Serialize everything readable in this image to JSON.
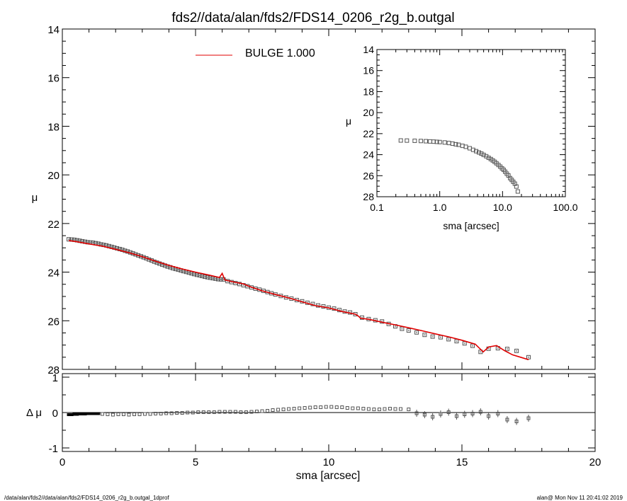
{
  "title": "fds2//data/alan/fds2/FDS14_0206_r2g_b.outgal",
  "footer_left": "/data/alan/fds2//data/alan/fds2/FDS14_0206_r2g_b.outgal_1dprof",
  "footer_right": "alan@  Mon Nov 11 20:41:02 2019",
  "legend": {
    "label": "BULGE  1.000",
    "color": "#e00000"
  },
  "chart_data": [
    {
      "type": "scatter",
      "panel": "main",
      "xlabel": "sma [arcsec]",
      "ylabel": "μ",
      "xlim": [
        0,
        20
      ],
      "ylim": [
        28,
        14
      ],
      "x_ticks": [
        "0",
        "5",
        "10",
        "15",
        "20"
      ],
      "y_ticks": [
        "14",
        "16",
        "18",
        "20",
        "22",
        "24",
        "26",
        "28"
      ],
      "series": [
        {
          "name": "data",
          "x": [
            0.24,
            0.35,
            0.45,
            0.55,
            0.65,
            0.75,
            0.85,
            0.95,
            1.05,
            1.15,
            1.25,
            1.35,
            1.45,
            1.55,
            1.65,
            1.75,
            1.85,
            1.95,
            2.05,
            2.15,
            2.25,
            2.35,
            2.45,
            2.55,
            2.65,
            2.75,
            2.85,
            2.95,
            3.05,
            3.15,
            3.25,
            3.35,
            3.45,
            3.55,
            3.65,
            3.75,
            3.85,
            3.95,
            4.05,
            4.15,
            4.25,
            4.35,
            4.45,
            4.55,
            4.65,
            4.75,
            4.85,
            4.95,
            5.05,
            5.15,
            5.25,
            5.35,
            5.45,
            5.55,
            5.65,
            5.75,
            5.85,
            5.95,
            6.05,
            6.2,
            6.35,
            6.5,
            6.65,
            6.8,
            6.95,
            7.1,
            7.25,
            7.4,
            7.55,
            7.7,
            7.85,
            8.0,
            8.2,
            8.4,
            8.6,
            8.8,
            9.0,
            9.2,
            9.4,
            9.6,
            9.8,
            10.0,
            10.2,
            10.4,
            10.6,
            10.8,
            11.0,
            11.25,
            11.5,
            11.75,
            12.0,
            12.25,
            12.5,
            12.75,
            13.0,
            13.3,
            13.6,
            13.9,
            14.2,
            14.5,
            14.8,
            15.1,
            15.4,
            15.7,
            16.0,
            16.35,
            16.7,
            17.05,
            17.5
          ],
          "y": [
            22.65,
            22.66,
            22.67,
            22.69,
            22.71,
            22.73,
            22.75,
            22.77,
            22.78,
            22.79,
            22.81,
            22.83,
            22.86,
            22.88,
            22.9,
            22.93,
            22.96,
            22.99,
            23.02,
            23.05,
            23.08,
            23.12,
            23.15,
            23.19,
            23.23,
            23.27,
            23.31,
            23.35,
            23.39,
            23.43,
            23.48,
            23.52,
            23.57,
            23.61,
            23.65,
            23.69,
            23.73,
            23.77,
            23.8,
            23.84,
            23.87,
            23.9,
            23.93,
            23.96,
            23.99,
            24.02,
            24.05,
            24.08,
            24.11,
            24.13,
            24.16,
            24.19,
            24.21,
            24.23,
            24.25,
            24.27,
            24.29,
            24.3,
            24.3,
            24.37,
            24.41,
            24.45,
            24.49,
            24.54,
            24.58,
            24.63,
            24.68,
            24.72,
            24.77,
            24.82,
            24.87,
            24.92,
            24.98,
            25.04,
            25.09,
            25.15,
            25.2,
            25.26,
            25.31,
            25.37,
            25.41,
            25.46,
            25.5,
            25.56,
            25.62,
            25.66,
            25.73,
            25.87,
            25.93,
            25.98,
            26.03,
            26.13,
            26.23,
            26.33,
            26.4,
            26.48,
            26.58,
            26.65,
            26.68,
            26.76,
            26.84,
            26.93,
            27.03,
            27.28,
            27.15,
            27.13,
            27.16,
            27.24,
            27.5
          ]
        },
        {
          "name": "BULGE  1.000",
          "x": [
            0.24,
            0.5,
            1.0,
            1.5,
            2.0,
            2.5,
            3.0,
            3.5,
            4.0,
            4.5,
            5.0,
            5.5,
            5.9,
            6.0,
            6.1,
            6.5,
            6.8,
            7.0,
            7.5,
            8.0,
            8.5,
            9.0,
            9.5,
            10.0,
            10.5,
            11.0,
            11.1,
            11.2,
            11.5,
            12.0,
            12.5,
            13.0,
            13.5,
            14.0,
            14.5,
            15.0,
            15.5,
            15.8,
            16.0,
            16.3,
            16.6,
            16.9,
            17.2,
            17.5
          ],
          "y": [
            22.7,
            22.74,
            22.84,
            22.93,
            23.06,
            23.2,
            23.36,
            23.55,
            23.72,
            23.87,
            24.0,
            24.12,
            24.22,
            24.05,
            24.32,
            24.42,
            24.48,
            24.58,
            24.77,
            24.92,
            25.06,
            25.22,
            25.38,
            25.47,
            25.62,
            25.73,
            25.8,
            25.9,
            25.94,
            26.06,
            26.17,
            26.29,
            26.41,
            26.54,
            26.66,
            26.8,
            26.96,
            27.28,
            27.08,
            27.02,
            27.23,
            27.4,
            27.5,
            27.6
          ]
        }
      ]
    },
    {
      "type": "scatter",
      "panel": "residuals",
      "xlabel": "sma [arcsec]",
      "ylabel": "Δ μ",
      "xlim": [
        0,
        20
      ],
      "ylim": [
        -1.1,
        1.1
      ],
      "y_ticks": [
        "1",
        "0",
        "-1"
      ],
      "x": [
        0.24,
        0.35,
        0.45,
        0.55,
        0.65,
        0.75,
        0.85,
        0.95,
        1.05,
        1.15,
        1.25,
        1.35,
        1.5,
        1.7,
        1.9,
        2.1,
        2.3,
        2.5,
        2.7,
        2.9,
        3.1,
        3.3,
        3.5,
        3.7,
        3.9,
        4.1,
        4.3,
        4.5,
        4.7,
        4.9,
        5.1,
        5.3,
        5.5,
        5.7,
        5.9,
        6.1,
        6.3,
        6.5,
        6.7,
        6.9,
        7.1,
        7.3,
        7.5,
        7.7,
        7.9,
        8.1,
        8.3,
        8.5,
        8.7,
        8.9,
        9.1,
        9.3,
        9.5,
        9.7,
        9.9,
        10.1,
        10.3,
        10.5,
        10.7,
        10.9,
        11.1,
        11.3,
        11.5,
        11.7,
        11.9,
        12.1,
        12.3,
        12.5,
        12.7,
        13.0,
        13.3,
        13.6,
        13.9,
        14.2,
        14.5,
        14.8,
        15.1,
        15.4,
        15.7,
        16.0,
        16.35,
        16.7,
        17.05,
        17.5
      ],
      "y": [
        -0.06,
        -0.06,
        -0.05,
        -0.05,
        -0.04,
        -0.04,
        -0.04,
        -0.03,
        -0.03,
        -0.03,
        -0.03,
        -0.03,
        -0.04,
        -0.05,
        -0.06,
        -0.05,
        -0.05,
        -0.06,
        -0.05,
        -0.05,
        -0.04,
        -0.04,
        -0.03,
        -0.03,
        -0.02,
        -0.02,
        -0.01,
        -0.01,
        0.0,
        0.0,
        0.01,
        0.01,
        0.01,
        0.01,
        0.02,
        0.02,
        0.02,
        0.02,
        0.01,
        0.01,
        0.02,
        0.03,
        0.04,
        0.05,
        0.07,
        0.08,
        0.09,
        0.1,
        0.11,
        0.12,
        0.13,
        0.14,
        0.15,
        0.15,
        0.16,
        0.16,
        0.15,
        0.15,
        0.13,
        0.12,
        0.12,
        0.11,
        0.1,
        0.09,
        0.09,
        0.1,
        0.11,
        0.1,
        0.1,
        0.09,
        -0.02,
        -0.06,
        -0.12,
        -0.04,
        0.01,
        -0.1,
        -0.05,
        -0.03,
        0.02,
        -0.1,
        -0.03,
        -0.2,
        -0.25,
        -0.16
      ]
    },
    {
      "type": "scatter",
      "panel": "inset",
      "xlabel": "sma [arcsec]",
      "ylabel": "μ",
      "x_scale": "log",
      "xlim": [
        0.1,
        100
      ],
      "ylim": [
        28,
        14
      ],
      "x_ticks": [
        "0.1",
        "1.0",
        "10.0",
        "100.0"
      ],
      "y_ticks": [
        "14",
        "16",
        "18",
        "20",
        "22",
        "24",
        "26",
        "28"
      ],
      "x": [
        0.24,
        0.3,
        0.4,
        0.5,
        0.6,
        0.7,
        0.8,
        0.9,
        1.0,
        1.2,
        1.4,
        1.6,
        1.8,
        2.0,
        2.3,
        2.6,
        3.0,
        3.4,
        3.8,
        4.2,
        4.6,
        5.0,
        5.5,
        6.0,
        6.5,
        7.0,
        7.5,
        8.0,
        8.6,
        9.2,
        9.8,
        10.4,
        11.0,
        11.7,
        12.4,
        13.2,
        14.0,
        14.8,
        15.7,
        16.6,
        17.5
      ],
      "y": [
        22.65,
        22.66,
        22.68,
        22.7,
        22.72,
        22.74,
        22.76,
        22.78,
        22.8,
        22.84,
        22.89,
        22.95,
        23.01,
        23.06,
        23.16,
        23.25,
        23.39,
        23.54,
        23.67,
        23.79,
        23.9,
        24.02,
        24.15,
        24.3,
        24.42,
        24.55,
        24.68,
        24.82,
        24.98,
        25.14,
        25.3,
        25.44,
        25.62,
        25.81,
        25.98,
        26.23,
        26.4,
        26.58,
        26.76,
        27.03,
        27.5
      ]
    }
  ]
}
